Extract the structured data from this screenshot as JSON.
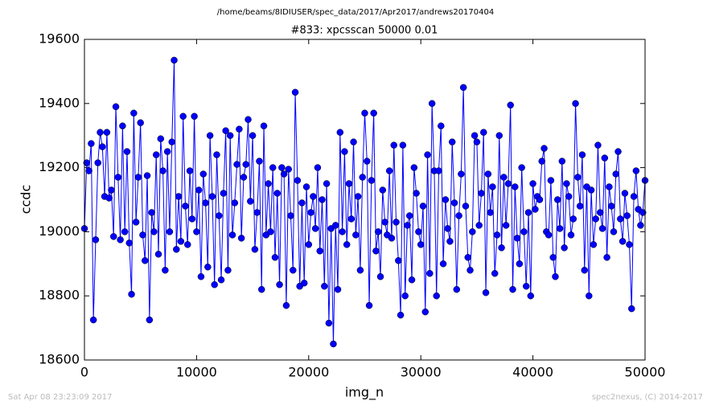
{
  "chart_data": {
    "type": "line",
    "suptitle": "/home/beams/8IDIUSER/spec_data/2017/Apr2017/andrews20170404",
    "title": "#833: xpcsscan 50000 0.01",
    "xlabel": "img_n",
    "ylabel": "ccdc",
    "annotations": [
      "Sat Apr 08 23:23:09 2017",
      "spec2nexus, (C) 2014-2017"
    ],
    "x": [
      0,
      200,
      400,
      600,
      800,
      1000,
      1200,
      1400,
      1600,
      1800,
      2000,
      2200,
      2400,
      2600,
      2800,
      3000,
      3200,
      3400,
      3600,
      3800,
      4000,
      4200,
      4400,
      4600,
      4800,
      5000,
      5200,
      5400,
      5600,
      5800,
      6000,
      6200,
      6400,
      6600,
      6800,
      7000,
      7200,
      7400,
      7600,
      7800,
      8000,
      8200,
      8400,
      8600,
      8800,
      9000,
      9200,
      9400,
      9600,
      9800,
      10000,
      10200,
      10400,
      10600,
      10800,
      11000,
      11200,
      11400,
      11600,
      11800,
      12000,
      12200,
      12400,
      12600,
      12800,
      13000,
      13200,
      13400,
      13600,
      13800,
      14000,
      14200,
      14400,
      14600,
      14800,
      15000,
      15200,
      15400,
      15600,
      15800,
      16000,
      16200,
      16400,
      16600,
      16800,
      17000,
      17200,
      17400,
      17600,
      17800,
      18000,
      18200,
      18400,
      18600,
      18800,
      19000,
      19200,
      19400,
      19600,
      19800,
      20000,
      20200,
      20400,
      20600,
      20800,
      21000,
      21200,
      21400,
      21600,
      21800,
      22000,
      22200,
      22400,
      22600,
      22800,
      23000,
      23200,
      23400,
      23600,
      23800,
      24000,
      24200,
      24400,
      24600,
      24800,
      25000,
      25200,
      25400,
      25600,
      25800,
      26000,
      26200,
      26400,
      26600,
      26800,
      27000,
      27200,
      27400,
      27600,
      27800,
      28000,
      28200,
      28400,
      28600,
      28800,
      29000,
      29200,
      29400,
      29600,
      29800,
      30000,
      30200,
      30400,
      30600,
      30800,
      31000,
      31200,
      31400,
      31600,
      31800,
      32000,
      32200,
      32400,
      32600,
      32800,
      33000,
      33200,
      33400,
      33600,
      33800,
      34000,
      34200,
      34400,
      34600,
      34800,
      35000,
      35200,
      35400,
      35600,
      35800,
      36000,
      36200,
      36400,
      36600,
      36800,
      37000,
      37200,
      37400,
      37600,
      37800,
      38000,
      38200,
      38400,
      38600,
      38800,
      39000,
      39200,
      39400,
      39600,
      39800,
      40000,
      40200,
      40400,
      40600,
      40800,
      41000,
      41200,
      41400,
      41600,
      41800,
      42000,
      42200,
      42400,
      42600,
      42800,
      43000,
      43200,
      43400,
      43600,
      43800,
      44000,
      44200,
      44400,
      44600,
      44800,
      45000,
      45200,
      45400,
      45600,
      45800,
      46000,
      46200,
      46400,
      46600,
      46800,
      47000,
      47200,
      47400,
      47600,
      47800,
      48000,
      48200,
      48400,
      48600,
      48800,
      49000,
      49200,
      49400,
      49600,
      49800,
      50000
    ],
    "series": [
      {
        "name": "ccdc",
        "color": "#0000ff",
        "values": [
          19010,
          19215,
          19190,
          19275,
          18725,
          18975,
          19215,
          19310,
          19265,
          19110,
          19310,
          19105,
          19130,
          18985,
          19390,
          19170,
          18975,
          19330,
          19000,
          19250,
          18965,
          18805,
          19370,
          19030,
          19170,
          19340,
          18990,
          18910,
          19175,
          18725,
          19060,
          19000,
          19240,
          18930,
          19290,
          19190,
          18880,
          19250,
          19000,
          19280,
          19535,
          18945,
          19110,
          18970,
          19360,
          19080,
          18960,
          19190,
          19040,
          19360,
          19000,
          19130,
          18860,
          19180,
          19090,
          18890,
          19300,
          19110,
          18835,
          19240,
          19050,
          18850,
          19120,
          19315,
          18880,
          19300,
          18990,
          19090,
          19210,
          19320,
          18980,
          19170,
          19210,
          19350,
          19095,
          19300,
          18945,
          19060,
          19220,
          18820,
          19330,
          18990,
          19150,
          19000,
          19200,
          18920,
          19120,
          18835,
          19200,
          19180,
          18770,
          19195,
          19050,
          18880,
          19435,
          19160,
          18830,
          19090,
          18840,
          19140,
          18960,
          19060,
          19110,
          19010,
          19200,
          18940,
          19100,
          18830,
          19150,
          18715,
          19010,
          18650,
          19020,
          18820,
          19310,
          19000,
          19250,
          18960,
          19150,
          19040,
          19280,
          18990,
          19110,
          18880,
          19170,
          19370,
          19220,
          18770,
          19160,
          19370,
          18940,
          19000,
          18860,
          19130,
          19030,
          18990,
          19190,
          18980,
          19270,
          19030,
          18910,
          18740,
          19270,
          18800,
          19020,
          19050,
          18850,
          19200,
          19120,
          19000,
          18960,
          19080,
          18750,
          19240,
          18870,
          19400,
          19190,
          18800,
          19190,
          19330,
          18900,
          19100,
          19010,
          18970,
          19280,
          19090,
          18820,
          19050,
          19180,
          19450,
          19080,
          18920,
          18880,
          19000,
          19300,
          19280,
          19020,
          19120,
          19310,
          18810,
          19180,
          19060,
          19140,
          18870,
          18990,
          19300,
          18950,
          19170,
          19020,
          19150,
          19395,
          18820,
          19140,
          18980,
          18900,
          19200,
          19000,
          18830,
          19060,
          18800,
          19150,
          19070,
          19110,
          19100,
          19220,
          19260,
          19000,
          18990,
          19160,
          18920,
          18860,
          19100,
          19010,
          19220,
          18950,
          19150,
          19110,
          18990,
          19040,
          19400,
          19170,
          19080,
          19240,
          18880,
          19140,
          18800,
          19130,
          18960,
          19040,
          19270,
          19060,
          19010,
          19230,
          18920,
          19140,
          19080,
          19000,
          19180,
          19250,
          19040,
          18970,
          19120,
          19050,
          18960,
          18760,
          19110,
          19190,
          19070,
          19020,
          19060,
          19160
        ]
      }
    ],
    "xlim": [
      0,
      50000
    ],
    "xticks": [
      0,
      10000,
      20000,
      30000,
      40000,
      50000
    ],
    "ylim": [
      18600,
      19600
    ],
    "yticks": [
      18600,
      18800,
      19000,
      19200,
      19400,
      19600
    ],
    "grid": false
  }
}
